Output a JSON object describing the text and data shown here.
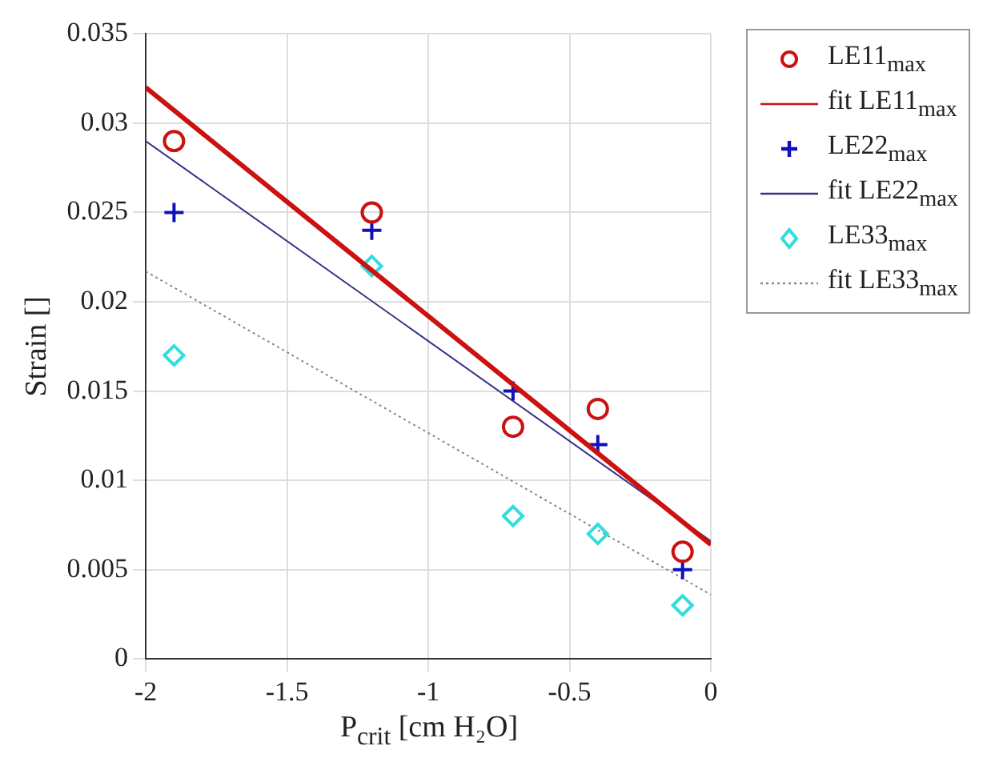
{
  "chart_data": {
    "type": "scatter",
    "xlabel": "P$_{crit}$ [cm H₂O]",
    "ylabel": "Strain []",
    "xlim": [
      -2,
      0
    ],
    "xticks": [
      -2,
      -1.5,
      -1,
      -0.5,
      0
    ],
    "ylim": [
      0,
      0.035
    ],
    "yticks": [
      0,
      0.005,
      0.01,
      0.015,
      0.02,
      0.025,
      0.03,
      0.035
    ],
    "grid": true,
    "legend": "top right",
    "series": [
      {
        "name": "LE11$_{max}$",
        "marker": "circle",
        "color": "#cc1111",
        "x": [
          -1.9,
          -1.2,
          -0.7,
          -0.4,
          -0.1
        ],
        "values": [
          0.029,
          0.025,
          0.013,
          0.014,
          0.006
        ]
      },
      {
        "name": "fit LE11$_{max}$",
        "type": "line",
        "marker": "none",
        "line_style": "solid",
        "color": "#cc1111",
        "x": [
          -2,
          0
        ],
        "values": [
          0.032,
          0.0064
        ]
      },
      {
        "name": "LE22$_{max}$",
        "marker": "cross",
        "color": "#1111bb",
        "x": [
          -1.9,
          -1.2,
          -0.7,
          -0.4,
          -0.1
        ],
        "values": [
          0.025,
          0.024,
          0.015,
          0.012,
          0.005
        ]
      },
      {
        "name": "fit LE22$_{max}$",
        "type": "line",
        "marker": "none",
        "line_style": "solid",
        "color": "#333388",
        "x": [
          -2,
          0
        ],
        "values": [
          0.029,
          0.0066
        ]
      },
      {
        "name": "LE33$_{max}$",
        "marker": "diamond",
        "color": "#33dddd",
        "x": [
          -1.9,
          -1.2,
          -0.7,
          -0.4,
          -0.1
        ],
        "values": [
          0.017,
          0.022,
          0.008,
          0.007,
          0.003
        ]
      },
      {
        "name": "fit LE33$_{max}$",
        "type": "line",
        "marker": "none",
        "line_style": "dotted",
        "color": "#888888",
        "x": [
          -2,
          0
        ],
        "values": [
          0.0217,
          0.0036
        ]
      }
    ]
  }
}
